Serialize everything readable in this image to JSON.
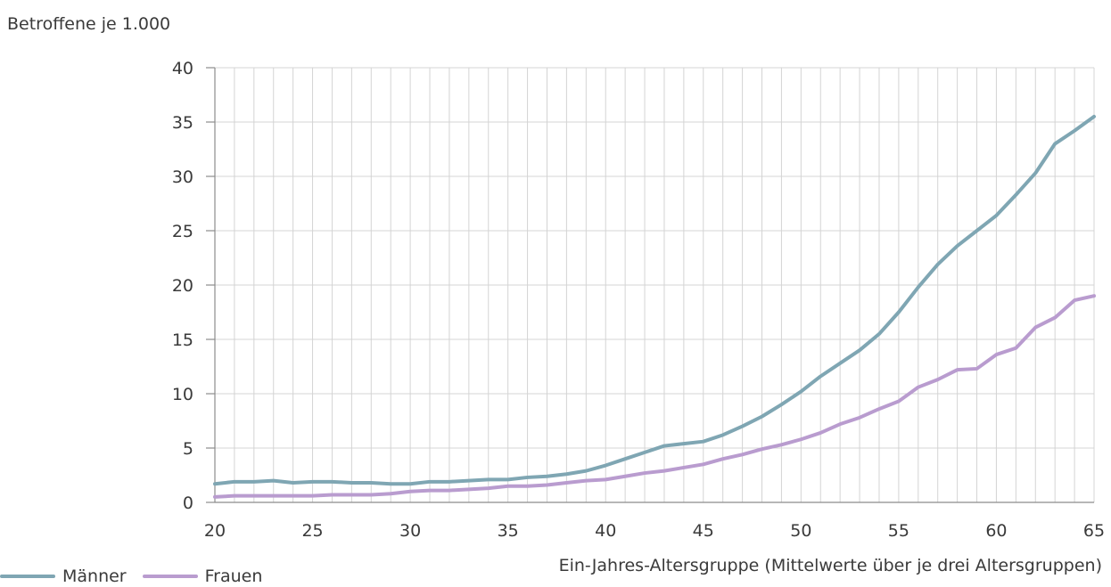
{
  "chart_data": {
    "type": "line",
    "ylabel": "Betroffene je 1.000",
    "xlabel": "Ein-Jahres-Altersgruppe (Mittelwerte über je drei Altersgruppen)",
    "xlim": [
      20,
      65
    ],
    "ylim": [
      0,
      40
    ],
    "x_ticks": [
      20,
      25,
      30,
      35,
      40,
      45,
      50,
      55,
      60,
      65
    ],
    "y_ticks": [
      0,
      5,
      10,
      15,
      20,
      25,
      30,
      35,
      40
    ],
    "grid": true,
    "legend_position": "bottom-left",
    "x": [
      20,
      21,
      22,
      23,
      24,
      25,
      26,
      27,
      28,
      29,
      30,
      31,
      32,
      33,
      34,
      35,
      36,
      37,
      38,
      39,
      40,
      41,
      42,
      43,
      44,
      45,
      46,
      47,
      48,
      49,
      50,
      51,
      52,
      53,
      54,
      55,
      56,
      57,
      58,
      59,
      60,
      61,
      62,
      63,
      64,
      65
    ],
    "series": [
      {
        "name": "Männer",
        "color": "#7fa6b3",
        "values": [
          1.7,
          1.9,
          1.9,
          2.0,
          1.8,
          1.9,
          1.9,
          1.8,
          1.8,
          1.7,
          1.7,
          1.9,
          1.9,
          2.0,
          2.1,
          2.1,
          2.3,
          2.4,
          2.6,
          2.9,
          3.4,
          4.0,
          4.6,
          5.2,
          5.4,
          5.6,
          6.2,
          7.0,
          7.9,
          9.0,
          10.2,
          11.6,
          12.8,
          14.0,
          15.5,
          17.5,
          19.8,
          21.9,
          23.6,
          25.0,
          26.4,
          28.3,
          30.3,
          33.0,
          34.2,
          35.5
        ]
      },
      {
        "name": "Frauen",
        "color": "#b99ccf",
        "values": [
          0.5,
          0.6,
          0.6,
          0.6,
          0.6,
          0.6,
          0.7,
          0.7,
          0.7,
          0.8,
          1.0,
          1.1,
          1.1,
          1.2,
          1.3,
          1.5,
          1.5,
          1.6,
          1.8,
          2.0,
          2.1,
          2.4,
          2.7,
          2.9,
          3.2,
          3.5,
          4.0,
          4.4,
          4.9,
          5.3,
          5.8,
          6.4,
          7.2,
          7.8,
          8.6,
          9.3,
          10.6,
          11.3,
          12.2,
          12.3,
          13.6,
          14.2,
          16.1,
          17.0,
          18.6,
          19.0
        ]
      }
    ]
  }
}
